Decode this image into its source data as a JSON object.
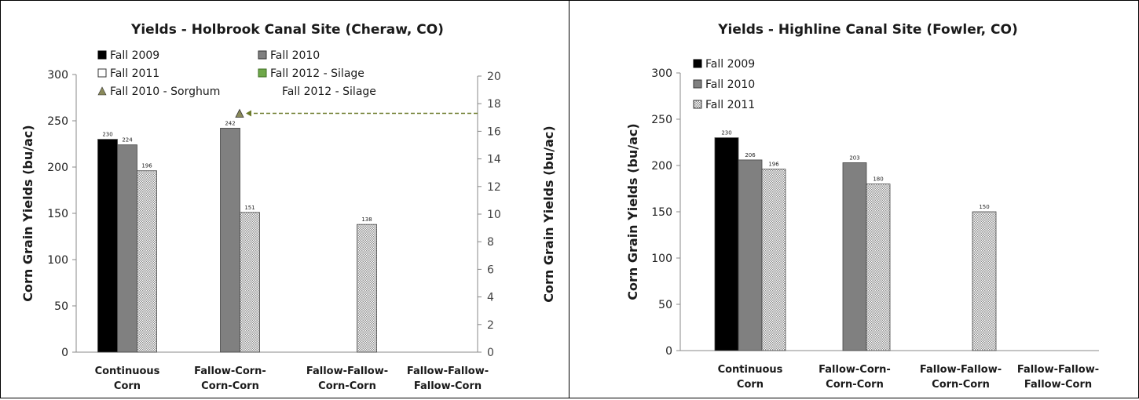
{
  "colors": {
    "fall_2009": "#000000",
    "fall_2010": "#808080",
    "fall_2011_hatch": "#cfcfcf",
    "silage": "#6fa84a",
    "sorghum": "#8a8a5a",
    "arrow": "#6b7a2a"
  },
  "chart_data": [
    {
      "type": "bar",
      "title": "Yields - Holbrook Canal Site (Cheraw, CO)",
      "ylabel": "Corn Grain Yields (bu/ac)",
      "y2label": "Corn Grain Yields (bu/ac)",
      "ylim": [
        0,
        300
      ],
      "yticks": [
        0,
        50,
        100,
        150,
        200,
        250,
        300
      ],
      "y2lim": [
        0,
        20
      ],
      "y2ticks": [
        0,
        2,
        4,
        6,
        8,
        10,
        12,
        14,
        16,
        18,
        20
      ],
      "categories": [
        {
          "line1": "Continuous",
          "line2": "Corn"
        },
        {
          "line1": "Fallow-Corn-",
          "line2": "Corn-Corn"
        },
        {
          "line1": "Fallow-Fallow-",
          "line2": "Corn-Corn"
        },
        {
          "line1": "Fallow-Fallow-",
          "line2": "Fallow-Corn"
        }
      ],
      "legend": [
        {
          "label": "Fall 2009",
          "marker": "square-black"
        },
        {
          "label": "Fall 2010",
          "marker": "square-gray"
        },
        {
          "label": "Fall 2011",
          "marker": "square-white"
        },
        {
          "label": "Fall 2012 - Silage",
          "marker": "square-green"
        },
        {
          "label": "Fall 2010 - Sorghum",
          "marker": "triangle"
        },
        {
          "label": "Fall 2012 - Silage",
          "marker": "none"
        }
      ],
      "series": [
        {
          "name": "Fall 2009",
          "style": "black",
          "values": [
            230,
            null,
            null,
            null
          ],
          "labels": [
            "230",
            "",
            "",
            ""
          ]
        },
        {
          "name": "Fall 2010",
          "style": "gray",
          "values": [
            224,
            242,
            null,
            null
          ],
          "labels": [
            "224",
            "242",
            "",
            ""
          ]
        },
        {
          "name": "Fall 2011",
          "style": "hatch",
          "values": [
            196,
            151,
            138,
            null
          ],
          "labels": [
            "196",
            "151",
            "138",
            ""
          ]
        }
      ],
      "bar_slots": [
        [
          0,
          1,
          2
        ],
        [
          1,
          2
        ],
        [
          2
        ],
        []
      ],
      "sorghum_point": {
        "category": 1,
        "y2": 17.3
      }
    },
    {
      "type": "bar",
      "title": "Yields - Highline Canal Site (Fowler, CO)",
      "ylabel": "Corn Grain Yields (bu/ac)",
      "ylim": [
        0,
        300
      ],
      "yticks": [
        0,
        50,
        100,
        150,
        200,
        250,
        300
      ],
      "categories": [
        {
          "line1": "Continuous",
          "line2": "Corn"
        },
        {
          "line1": "Fallow-Corn-",
          "line2": "Corn-Corn"
        },
        {
          "line1": "Fallow-Fallow-",
          "line2": "Corn-Corn"
        },
        {
          "line1": "Fallow-Fallow-",
          "line2": "Fallow-Corn"
        }
      ],
      "legend": [
        {
          "label": "Fall 2009",
          "marker": "square-black"
        },
        {
          "label": "Fall 2010",
          "marker": "square-gray"
        },
        {
          "label": "Fall 2011",
          "marker": "square-hatch"
        }
      ],
      "series": [
        {
          "name": "Fall 2009",
          "style": "black",
          "values": [
            230,
            null,
            null,
            null
          ],
          "labels": [
            "230",
            "",
            "",
            ""
          ]
        },
        {
          "name": "Fall 2010",
          "style": "gray",
          "values": [
            206,
            203,
            null,
            null
          ],
          "labels": [
            "206",
            "203",
            "",
            ""
          ]
        },
        {
          "name": "Fall 2011",
          "style": "hatch",
          "values": [
            196,
            180,
            150,
            null
          ],
          "labels": [
            "196",
            "180",
            "150",
            ""
          ]
        }
      ],
      "bar_slots": [
        [
          0,
          1,
          2
        ],
        [
          1,
          2
        ],
        [
          2
        ],
        []
      ]
    }
  ]
}
